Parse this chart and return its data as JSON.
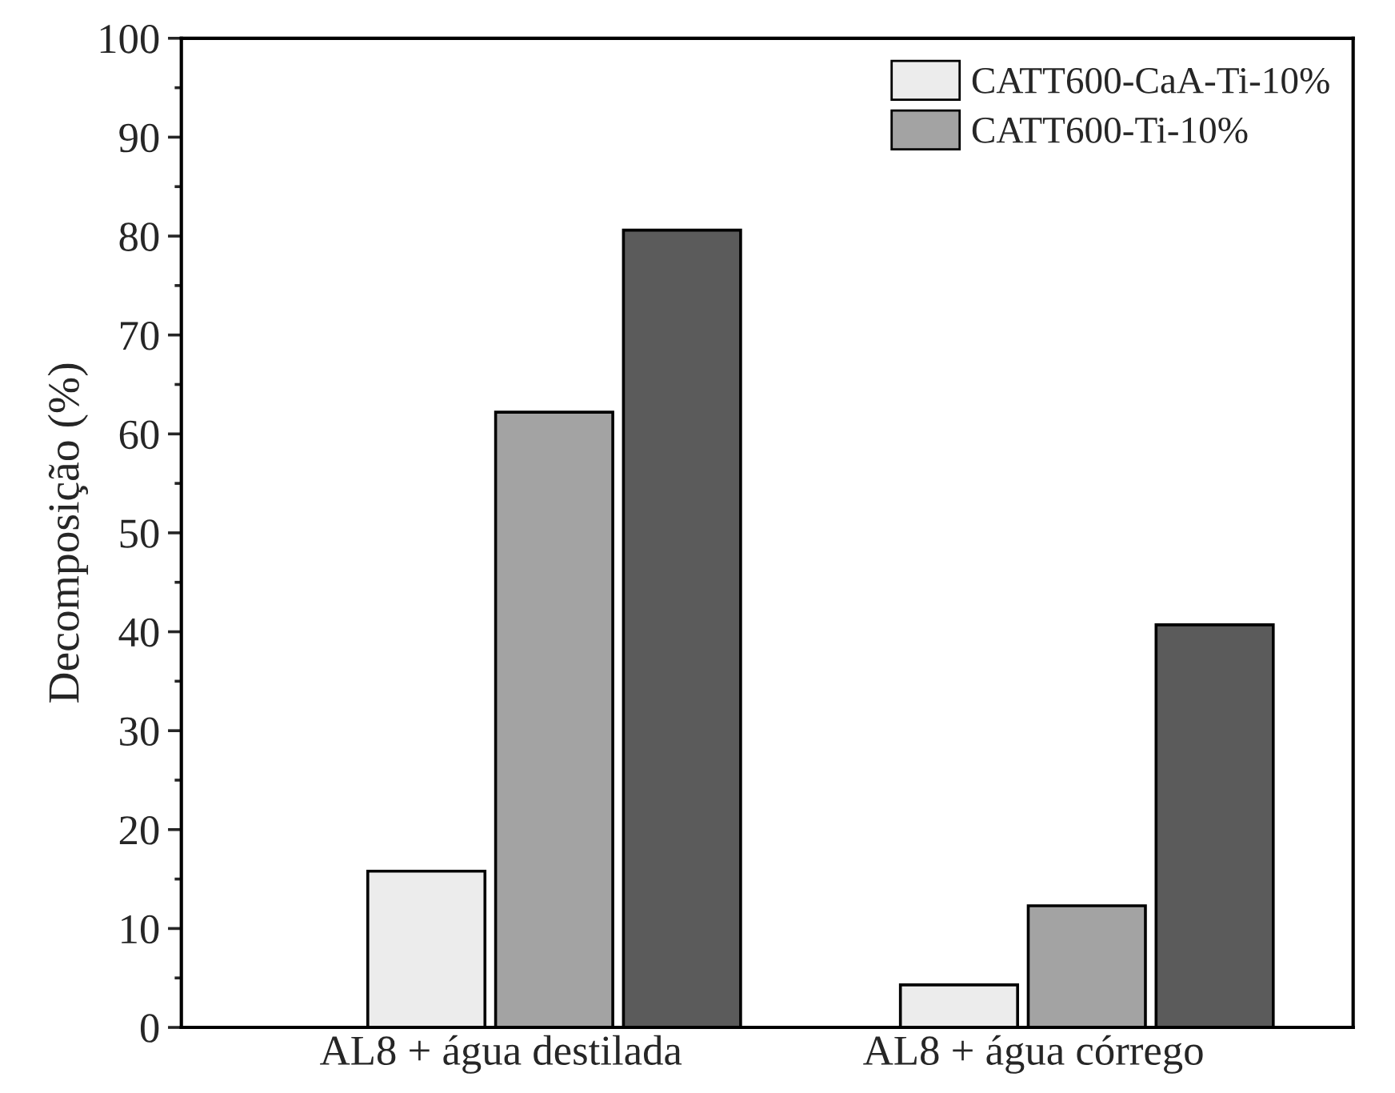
{
  "chart_data": {
    "type": "bar",
    "ylabel": "Decomposição (%)",
    "categories": [
      "AL8 + água destilada",
      "AL8 + água córrego"
    ],
    "series": [
      {
        "name": "CATT600-CaA-Ti-10%",
        "color": "#ececec",
        "values": [
          15.8,
          4.3
        ]
      },
      {
        "name": "CATT600-Ti-10%",
        "color": "#a3a3a3",
        "values": [
          62.2,
          12.3
        ]
      },
      {
        "color": "#5b5b5b",
        "values": [
          80.6,
          40.7
        ]
      }
    ],
    "ylim": [
      0,
      100
    ],
    "yticks": [
      0,
      10,
      20,
      30,
      40,
      50,
      60,
      70,
      80,
      90,
      100
    ],
    "grid": false,
    "legend": "top right"
  }
}
